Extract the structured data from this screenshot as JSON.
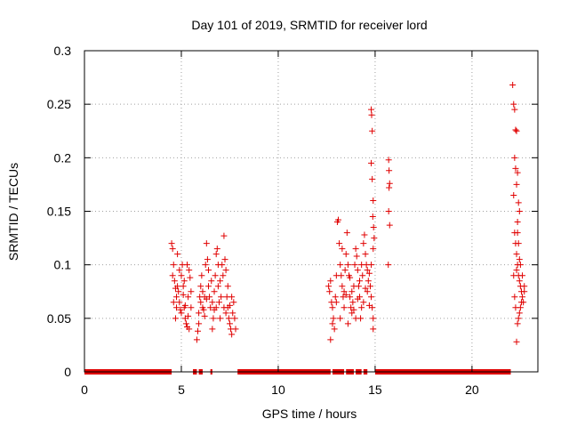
{
  "chart_data": {
    "type": "scatter",
    "title": "Day 101 of 2019, SRMTID for receiver lord",
    "xlabel": "GPS time / hours",
    "ylabel": "SRMTID / TECUs",
    "xlim": [
      0,
      23.4
    ],
    "ylim": [
      0,
      0.3
    ],
    "grid": true,
    "x_ticks": [
      0,
      5,
      10,
      15,
      20
    ],
    "x_tick_labels": [
      "0",
      "5",
      "10",
      "15",
      "20"
    ],
    "y_ticks": [
      0,
      0.05,
      0.1,
      0.15,
      0.2,
      0.25,
      0.3
    ],
    "y_tick_labels": [
      "0",
      "0.05",
      "0.1",
      "0.15",
      "0.2",
      "0.25",
      "0.3"
    ],
    "marker": "+",
    "marker_color": "#e00000",
    "zero_level_segments": [
      [
        0.0,
        4.5
      ],
      [
        5.6,
        5.8
      ],
      [
        5.9,
        6.1
      ],
      [
        6.5,
        6.6
      ],
      [
        7.9,
        12.7
      ],
      [
        12.8,
        13.4
      ],
      [
        13.5,
        13.9
      ],
      [
        14.0,
        14.3
      ],
      [
        14.4,
        14.6
      ],
      [
        15.0,
        22.0
      ]
    ],
    "series": [
      {
        "name": "SRMTID",
        "points": [
          [
            4.5,
            0.12
          ],
          [
            4.55,
            0.115
          ],
          [
            4.6,
            0.1
          ],
          [
            4.65,
            0.085
          ],
          [
            4.7,
            0.078
          ],
          [
            4.75,
            0.07
          ],
          [
            4.8,
            0.08
          ],
          [
            4.85,
            0.075
          ],
          [
            4.9,
            0.065
          ],
          [
            4.95,
            0.058
          ],
          [
            5.0,
            0.09
          ],
          [
            5.05,
            0.1
          ],
          [
            5.1,
            0.08
          ],
          [
            5.15,
            0.06
          ],
          [
            5.2,
            0.05
          ],
          [
            5.25,
            0.045
          ],
          [
            5.3,
            0.042
          ],
          [
            5.35,
            0.07
          ],
          [
            5.4,
            0.095
          ],
          [
            5.45,
            0.088
          ],
          [
            5.5,
            0.06
          ],
          [
            4.6,
            0.065
          ],
          [
            4.7,
            0.05
          ],
          [
            4.8,
            0.11
          ],
          [
            4.9,
            0.095
          ],
          [
            5.0,
            0.055
          ],
          [
            5.1,
            0.072
          ],
          [
            5.2,
            0.062
          ],
          [
            5.3,
            0.1
          ],
          [
            5.4,
            0.04
          ],
          [
            5.5,
            0.075
          ],
          [
            4.55,
            0.09
          ],
          [
            4.75,
            0.06
          ],
          [
            5.15,
            0.085
          ],
          [
            5.35,
            0.052
          ],
          [
            5.8,
            0.03
          ],
          [
            5.85,
            0.038
          ],
          [
            5.9,
            0.055
          ],
          [
            5.95,
            0.07
          ],
          [
            6.0,
            0.065
          ],
          [
            6.05,
            0.09
          ],
          [
            6.1,
            0.06
          ],
          [
            6.15,
            0.058
          ],
          [
            6.2,
            0.07
          ],
          [
            6.25,
            0.1
          ],
          [
            6.3,
            0.12
          ],
          [
            6.35,
            0.105
          ],
          [
            6.4,
            0.08
          ],
          [
            6.45,
            0.07
          ],
          [
            6.5,
            0.06
          ],
          [
            6.55,
            0.085
          ],
          [
            6.6,
            0.065
          ],
          [
            6.65,
            0.05
          ],
          [
            6.7,
            0.075
          ],
          [
            6.75,
            0.09
          ],
          [
            6.8,
            0.11
          ],
          [
            6.85,
            0.115
          ],
          [
            6.9,
            0.08
          ],
          [
            6.95,
            0.065
          ],
          [
            7.0,
            0.05
          ],
          [
            7.05,
            0.07
          ],
          [
            7.1,
            0.1
          ],
          [
            7.15,
            0.09
          ],
          [
            7.2,
            0.127
          ],
          [
            7.25,
            0.105
          ],
          [
            7.3,
            0.095
          ],
          [
            7.35,
            0.07
          ],
          [
            7.4,
            0.06
          ],
          [
            7.45,
            0.05
          ],
          [
            7.5,
            0.045
          ],
          [
            7.55,
            0.04
          ],
          [
            7.6,
            0.035
          ],
          [
            7.65,
            0.055
          ],
          [
            7.7,
            0.065
          ],
          [
            7.75,
            0.05
          ],
          [
            7.8,
            0.04
          ],
          [
            5.9,
            0.045
          ],
          [
            6.0,
            0.08
          ],
          [
            6.2,
            0.052
          ],
          [
            6.4,
            0.095
          ],
          [
            6.6,
            0.04
          ],
          [
            6.8,
            0.06
          ],
          [
            7.0,
            0.085
          ],
          [
            7.2,
            0.06
          ],
          [
            7.4,
            0.08
          ],
          [
            7.6,
            0.07
          ],
          [
            6.1,
            0.075
          ],
          [
            6.3,
            0.068
          ],
          [
            6.7,
            0.058
          ],
          [
            6.9,
            0.1
          ],
          [
            7.3,
            0.055
          ],
          [
            7.5,
            0.062
          ],
          [
            12.6,
            0.08
          ],
          [
            12.65,
            0.075
          ],
          [
            12.7,
            0.085
          ],
          [
            12.75,
            0.065
          ],
          [
            12.8,
            0.06
          ],
          [
            12.85,
            0.05
          ],
          [
            12.9,
            0.04
          ],
          [
            12.95,
            0.07
          ],
          [
            13.0,
            0.09
          ],
          [
            13.05,
            0.14
          ],
          [
            13.1,
            0.142
          ],
          [
            13.15,
            0.12
          ],
          [
            13.2,
            0.1
          ],
          [
            13.25,
            0.09
          ],
          [
            13.3,
            0.08
          ],
          [
            13.35,
            0.07
          ],
          [
            13.4,
            0.075
          ],
          [
            13.45,
            0.095
          ],
          [
            13.5,
            0.11
          ],
          [
            13.55,
            0.13
          ],
          [
            13.6,
            0.1
          ],
          [
            13.65,
            0.09
          ],
          [
            13.7,
            0.07
          ],
          [
            13.75,
            0.06
          ],
          [
            13.8,
            0.055
          ],
          [
            13.85,
            0.065
          ],
          [
            13.9,
            0.08
          ],
          [
            13.95,
            0.1
          ],
          [
            14.0,
            0.115
          ],
          [
            14.05,
            0.108
          ],
          [
            14.1,
            0.095
          ],
          [
            14.15,
            0.08
          ],
          [
            14.2,
            0.07
          ],
          [
            14.25,
            0.05
          ],
          [
            14.3,
            0.06
          ],
          [
            14.35,
            0.09
          ],
          [
            14.4,
            0.12
          ],
          [
            14.45,
            0.128
          ],
          [
            14.5,
            0.11
          ],
          [
            14.55,
            0.1
          ],
          [
            14.6,
            0.095
          ],
          [
            14.65,
            0.085
          ],
          [
            14.7,
            0.092
          ],
          [
            14.75,
            0.08
          ],
          [
            14.8,
            0.07
          ],
          [
            14.85,
            0.06
          ],
          [
            14.9,
            0.05
          ],
          [
            12.7,
            0.03
          ],
          [
            12.8,
            0.045
          ],
          [
            13.0,
            0.065
          ],
          [
            13.2,
            0.05
          ],
          [
            13.4,
            0.06
          ],
          [
            13.6,
            0.045
          ],
          [
            13.8,
            0.075
          ],
          [
            14.0,
            0.05
          ],
          [
            14.2,
            0.085
          ],
          [
            14.4,
            0.065
          ],
          [
            14.6,
            0.075
          ],
          [
            14.8,
            0.1
          ],
          [
            14.9,
            0.04
          ],
          [
            13.3,
            0.115
          ],
          [
            13.5,
            0.072
          ],
          [
            13.7,
            0.088
          ],
          [
            13.9,
            0.058
          ],
          [
            14.1,
            0.068
          ],
          [
            14.3,
            0.1
          ],
          [
            14.5,
            0.078
          ],
          [
            14.7,
            0.062
          ],
          [
            14.8,
            0.245
          ],
          [
            14.82,
            0.24
          ],
          [
            14.85,
            0.225
          ],
          [
            14.8,
            0.195
          ],
          [
            14.85,
            0.18
          ],
          [
            14.9,
            0.16
          ],
          [
            14.88,
            0.145
          ],
          [
            14.92,
            0.135
          ],
          [
            14.95,
            0.125
          ],
          [
            14.9,
            0.115
          ],
          [
            15.7,
            0.198
          ],
          [
            15.72,
            0.188
          ],
          [
            15.75,
            0.176
          ],
          [
            15.72,
            0.172
          ],
          [
            15.7,
            0.15
          ],
          [
            15.75,
            0.137
          ],
          [
            15.68,
            0.1
          ],
          [
            22.1,
            0.268
          ],
          [
            22.15,
            0.25
          ],
          [
            22.2,
            0.245
          ],
          [
            22.25,
            0.226
          ],
          [
            22.3,
            0.225
          ],
          [
            22.2,
            0.2
          ],
          [
            22.25,
            0.19
          ],
          [
            22.35,
            0.186
          ],
          [
            22.3,
            0.175
          ],
          [
            22.15,
            0.165
          ],
          [
            22.4,
            0.158
          ],
          [
            22.45,
            0.15
          ],
          [
            22.35,
            0.14
          ],
          [
            22.2,
            0.13
          ],
          [
            22.25,
            0.12
          ],
          [
            22.3,
            0.11
          ],
          [
            22.35,
            0.1
          ],
          [
            22.4,
            0.09
          ],
          [
            22.45,
            0.085
          ],
          [
            22.5,
            0.08
          ],
          [
            22.55,
            0.075
          ],
          [
            22.6,
            0.07
          ],
          [
            22.65,
            0.065
          ],
          [
            22.7,
            0.08
          ],
          [
            22.5,
            0.06
          ],
          [
            22.45,
            0.055
          ],
          [
            22.4,
            0.05
          ],
          [
            22.35,
            0.045
          ],
          [
            22.3,
            0.028
          ],
          [
            22.15,
            0.09
          ],
          [
            22.2,
            0.07
          ],
          [
            22.3,
            0.095
          ],
          [
            22.4,
            0.12
          ],
          [
            22.5,
            0.1
          ],
          [
            22.6,
            0.09
          ],
          [
            22.7,
            0.075
          ],
          [
            22.55,
            0.065
          ],
          [
            22.45,
            0.105
          ],
          [
            22.25,
            0.06
          ],
          [
            22.35,
            0.13
          ]
        ]
      }
    ]
  }
}
